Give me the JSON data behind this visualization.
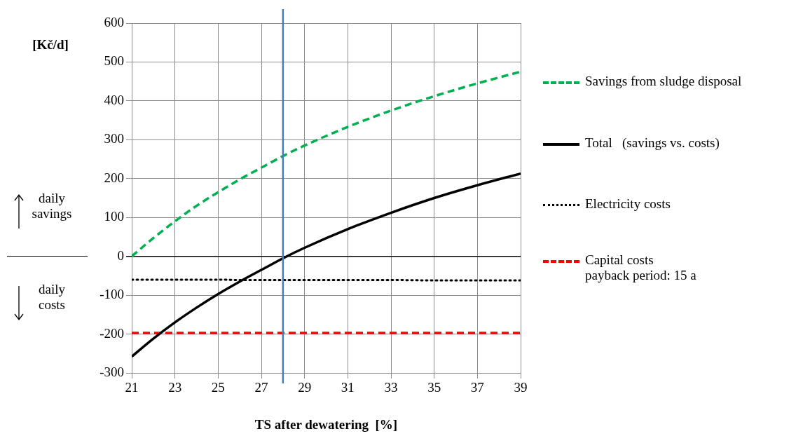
{
  "chart_data": {
    "type": "line",
    "x": [
      21,
      22,
      23,
      24,
      25,
      26,
      27,
      28,
      29,
      31,
      33,
      35,
      37,
      39
    ],
    "series": [
      {
        "name": "Savings from sludge disposal",
        "color": "#00b050",
        "line_style": "dashed",
        "values": [
          0,
          47,
          90,
          130,
          165,
          198,
          228,
          258,
          285,
          333,
          375,
          412,
          445,
          475
        ]
      },
      {
        "name": "Total   (savings vs. costs)",
        "color": "#000000",
        "line_style": "solid",
        "values": [
          -258,
          -212,
          -170,
          -132,
          -97,
          -65,
          -35,
          -5,
          22,
          70,
          112,
          150,
          183,
          213
        ]
      },
      {
        "name": "Electricity costs",
        "color": "#000000",
        "line_style": "dotted",
        "values": [
          -60,
          -60,
          -60,
          -60,
          -60,
          -61,
          -61,
          -61,
          -61,
          -61,
          -61,
          -62,
          -62,
          -62
        ]
      },
      {
        "name": "Capital costs\npayback period: 15 a",
        "color": "#ff0000",
        "line_style": "dashed",
        "values": [
          -197,
          -197,
          -197,
          -197,
          -197,
          -197,
          -197,
          -197,
          -197,
          -197,
          -197,
          -197,
          -197,
          -197
        ]
      }
    ],
    "xlabel": "TS after dewatering  [%]",
    "ylabel": "[Kč/d]",
    "xlim": [
      21,
      39
    ],
    "xticks": [
      21,
      23,
      25,
      27,
      29,
      31,
      33,
      35,
      37,
      39
    ],
    "ylim": [
      -300,
      600
    ],
    "yticks": [
      -300,
      -200,
      -100,
      0,
      100,
      200,
      300,
      400,
      500,
      600
    ],
    "ref_lines": [
      {
        "axis": "x",
        "value": 28,
        "color": "#4a7ebb"
      }
    ],
    "annotations": [
      "daily savings",
      "daily costs"
    ],
    "grid": true,
    "legend": "right",
    "marker": "none"
  }
}
